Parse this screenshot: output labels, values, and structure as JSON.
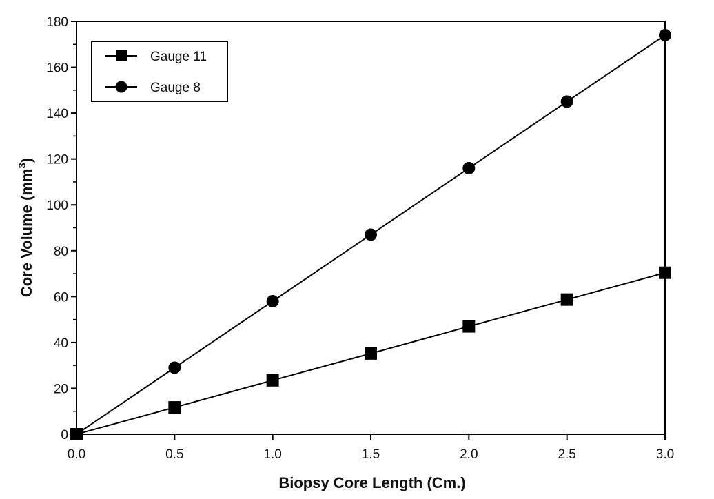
{
  "chart_data": {
    "type": "line",
    "title": "",
    "xlabel": "Biopsy Core Length (Cm.)",
    "ylabel": "Core Volume (mm",
    "ylabel_sup": "3",
    "ylabel_end": ")",
    "xlim": [
      0,
      3
    ],
    "ylim": [
      0,
      180
    ],
    "xticks": [
      "0.0",
      "0.5",
      "1.0",
      "1.5",
      "2.0",
      "2.5",
      "3.0"
    ],
    "yticks": [
      "0",
      "20",
      "40",
      "60",
      "80",
      "100",
      "120",
      "140",
      "160",
      "180"
    ],
    "grid": false,
    "legend_position": "top-left",
    "x": [
      0,
      0.5,
      1.0,
      1.5,
      2.0,
      2.5,
      3.0
    ],
    "series": [
      {
        "name": "Gauge 11",
        "marker": "square",
        "color": "#000000",
        "values": [
          0,
          11.7,
          23.5,
          35.2,
          47.0,
          58.7,
          70.4
        ]
      },
      {
        "name": "Gauge 8",
        "marker": "circle",
        "color": "#000000",
        "values": [
          0,
          29,
          58,
          87,
          116,
          145,
          174
        ]
      }
    ]
  }
}
